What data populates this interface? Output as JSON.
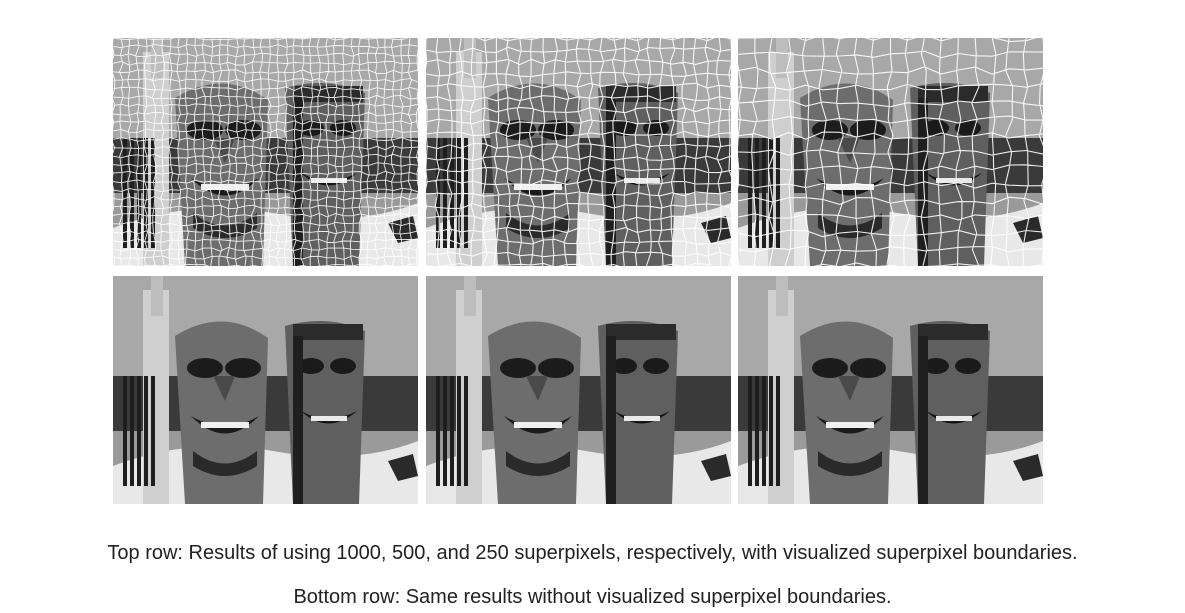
{
  "figure": {
    "rows": [
      {
        "row": "top",
        "panels": [
          {
            "superpixels": 1000,
            "boundaries_visible": true
          },
          {
            "superpixels": 500,
            "boundaries_visible": true
          },
          {
            "superpixels": 250,
            "boundaries_visible": true
          }
        ]
      },
      {
        "row": "bottom",
        "panels": [
          {
            "superpixels": 1000,
            "boundaries_visible": false
          },
          {
            "superpixels": 500,
            "boundaries_visible": false
          },
          {
            "superpixels": 250,
            "boundaries_visible": false
          }
        ]
      }
    ],
    "colors": {
      "background": "#ffffff",
      "caption_text": "#222222",
      "boundary_line": "#ffffff"
    }
  },
  "caption": {
    "line1": "Top row: Results of using 1000, 500, and 250 superpixels, respectively, with visualized superpixel boundaries.",
    "line2": "Bottom row: Same results without visualized superpixel boundaries."
  }
}
